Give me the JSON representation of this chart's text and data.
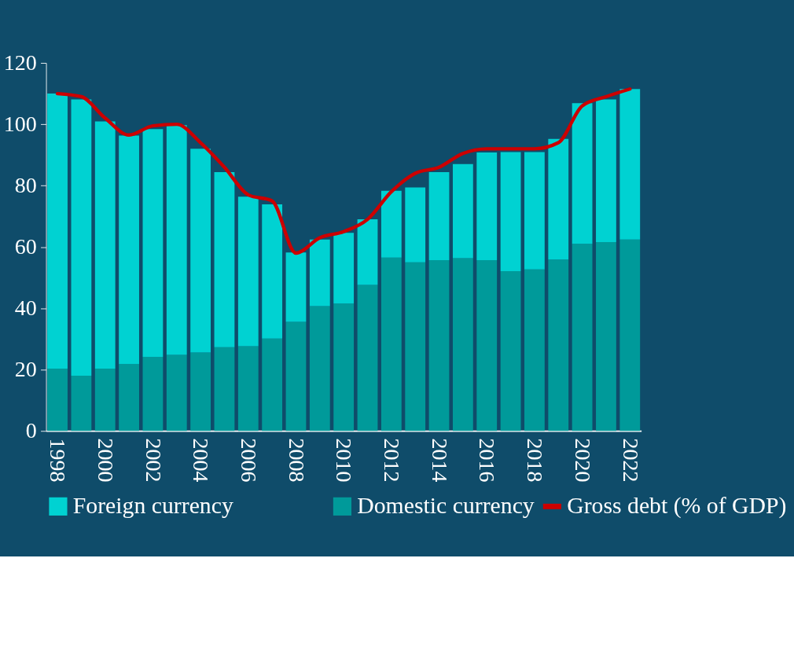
{
  "chart_data": {
    "type": "bar",
    "stacked": true,
    "categories": [
      "1998",
      null,
      "2000",
      null,
      "2002",
      null,
      "2004",
      null,
      "2006",
      null,
      "2008",
      null,
      "2010",
      null,
      "2012",
      null,
      "2014",
      null,
      "2016",
      null,
      "2018",
      null,
      "2020",
      null,
      "2022"
    ],
    "series": [
      {
        "name": "Domestic currency",
        "color": "#009a9a",
        "values": [
          20.3,
          18.0,
          20.3,
          21.8,
          24.1,
          24.8,
          25.6,
          27.3,
          27.6,
          30.1,
          35.6,
          40.7,
          41.5,
          47.6,
          56.5,
          55.0,
          55.7,
          56.3,
          55.7,
          52.1,
          52.7,
          55.9,
          61.0,
          61.6,
          62.4
        ]
      },
      {
        "name": "Foreign currency",
        "color": "#00d2d2",
        "values": [
          89.7,
          90.1,
          80.6,
          74.5,
          74.3,
          74.9,
          66.4,
          57.1,
          48.8,
          43.8,
          22.6,
          21.7,
          23.1,
          21.4,
          21.8,
          24.4,
          28.7,
          30.7,
          35.1,
          38.8,
          38.2,
          39.3,
          45.9,
          46.5,
          49.1
        ]
      },
      {
        "name": "Gross debt (% of GDP)",
        "type": "line",
        "color": "#cc0000",
        "values": [
          110,
          109,
          102,
          96.5,
          99.5,
          100,
          94,
          86,
          77,
          75,
          58,
          63,
          65,
          69,
          78,
          84,
          86,
          90.5,
          92,
          92,
          92,
          94,
          106,
          109,
          111.5
        ]
      }
    ],
    "ylim": [
      0,
      120
    ],
    "yticks": [
      0,
      20,
      40,
      60,
      80,
      100,
      120
    ],
    "grid": false,
    "legend": "bottom"
  }
}
